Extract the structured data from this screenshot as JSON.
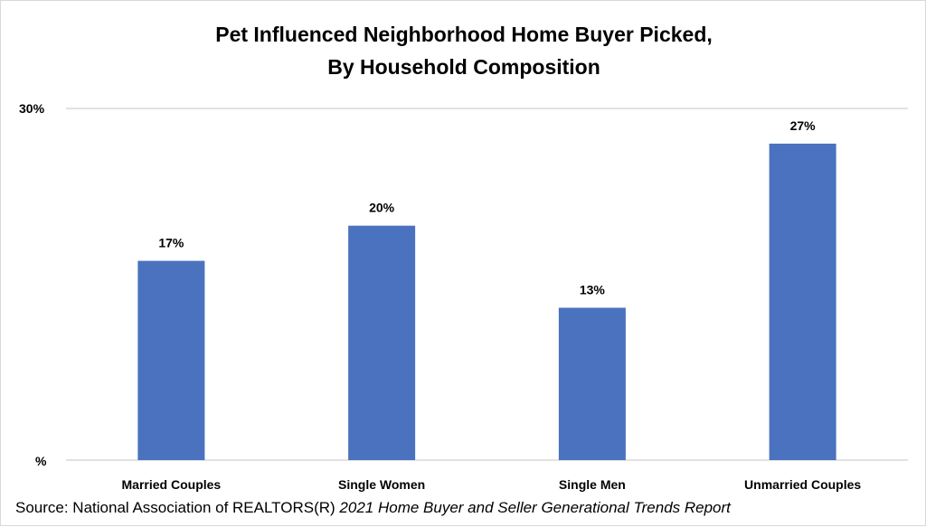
{
  "chart_data": {
    "type": "bar",
    "title_lines": [
      "Pet Influenced Neighborhood Home Buyer Picked,",
      "By Household Composition"
    ],
    "categories": [
      "Married Couples",
      "Single Women",
      "Single Men",
      "Unmarried Couples"
    ],
    "values": [
      17,
      20,
      13,
      27
    ],
    "data_labels": [
      "17%",
      "20%",
      "13%",
      "27%"
    ],
    "ylim": [
      0,
      30
    ],
    "y_tick_labels": [
      "%",
      "30%"
    ],
    "grid": true,
    "legend": "none",
    "bar_color": "#4a72be",
    "gridline_color": "#d9d9d9"
  },
  "source": {
    "prefix": "Source: National Association of REALTORS(R) ",
    "report": "2021 Home Buyer and Seller Generational Trends Report"
  }
}
